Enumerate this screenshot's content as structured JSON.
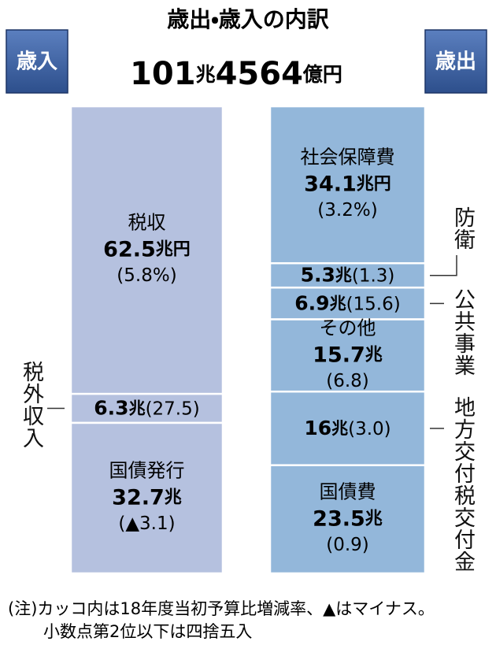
{
  "chart_data": {
    "type": "stacked-column",
    "title": "歳出・歳入の内訳",
    "total": {
      "value": 101.4564,
      "label": "101兆4564億円"
    },
    "stacks": [
      {
        "name": "歳入",
        "color": "#b5c1df",
        "segments": [
          {
            "name": "税収",
            "value": 62.5,
            "value_label": "62.5兆円",
            "change": 5.8,
            "change_label": "(5.8%)",
            "label_position": "inside"
          },
          {
            "name": "税外収入",
            "value": 6.3,
            "value_label": "6.3兆",
            "change": 27.5,
            "change_label": "(27.5)",
            "label_position": "outside"
          },
          {
            "name": "国債発行",
            "value": 32.7,
            "value_label": "32.7兆",
            "change": -3.1,
            "change_label": "(▲3.1)",
            "label_position": "inside"
          }
        ]
      },
      {
        "name": "歳出",
        "color": "#93b7da",
        "segments": [
          {
            "name": "社会保障費",
            "value": 34.1,
            "value_label": "34.1兆円",
            "change": 3.2,
            "change_label": "(3.2%)",
            "label_position": "inside"
          },
          {
            "name": "防衛",
            "value": 5.3,
            "value_label": "5.3兆",
            "change": 1.3,
            "change_label": "(1.3)",
            "label_position": "outside"
          },
          {
            "name": "公共事業",
            "value": 6.9,
            "value_label": "6.9兆",
            "change": 15.6,
            "change_label": "(15.6)",
            "label_position": "outside"
          },
          {
            "name": "その他",
            "value": 15.7,
            "value_label": "15.7兆",
            "change": 6.8,
            "change_label": "(6.8)",
            "label_position": "inside"
          },
          {
            "name": "地方交付税交付金",
            "value": 16,
            "value_label": "16兆",
            "change": 3.0,
            "change_label": "(3.0)",
            "label_position": "outside"
          },
          {
            "name": "国債費",
            "value": 23.5,
            "value_label": "23.5兆",
            "change": 0.9,
            "change_label": "(0.9)",
            "label_position": "inside"
          }
        ]
      }
    ],
    "notes": [
      "(注)カッコ内は18年度当初予算比増減率、▲はマイナス。",
      "小数点第2位以下は四捨五入"
    ]
  }
}
